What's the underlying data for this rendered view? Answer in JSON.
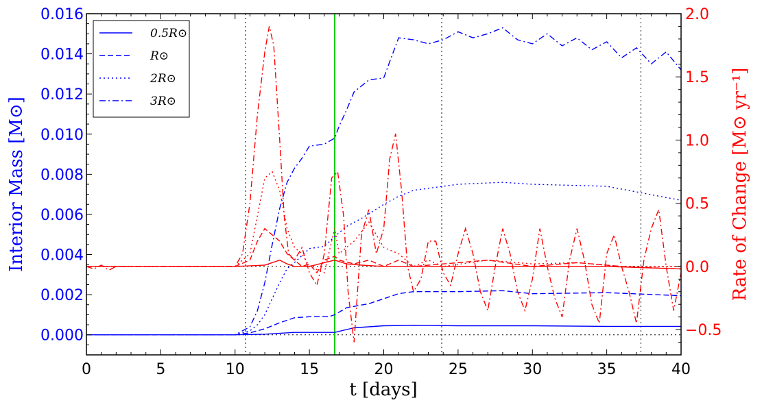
{
  "chart_data": {
    "type": "line",
    "xlabel": "t  [days]",
    "ylabel_left": "Interior Mass  [M⊙]",
    "ylabel_right": "Rate of Change  [M⊙ yr⁻¹]",
    "xlim": [
      0,
      40
    ],
    "ylim_left": [
      -0.001,
      0.016
    ],
    "ylim_right": [
      -0.7,
      2.0
    ],
    "x_ticks": [
      "0",
      "5",
      "10",
      "15",
      "20",
      "25",
      "30",
      "35",
      "40"
    ],
    "y_left_ticks": [
      "0.000",
      "0.002",
      "0.004",
      "0.006",
      "0.008",
      "0.010",
      "0.012",
      "0.014",
      "0.016"
    ],
    "y_right_ticks": [
      "−0.5",
      "0.0",
      "0.5",
      "1.0",
      "1.5",
      "2.0"
    ],
    "grid": false,
    "legend_placement": "top-left",
    "left_axis_color": "#0000ff",
    "right_axis_color": "#ff0000",
    "vertical_markers": [
      {
        "x": 10.7,
        "color": "#000000",
        "style": "dotted"
      },
      {
        "x": 16.7,
        "color": "#00cc00",
        "style": "solid"
      },
      {
        "x": 23.9,
        "color": "#000000",
        "style": "dotted"
      },
      {
        "x": 37.3,
        "color": "#000000",
        "style": "dotted"
      }
    ],
    "horizontal_markers": [
      {
        "axis": "left",
        "y": 0.0,
        "color": "#000000",
        "style": "dotted"
      },
      {
        "axis": "right",
        "y": 0.0,
        "color": "#000000",
        "style": "dotted"
      }
    ],
    "mass_series": [
      {
        "name": "0.5R⊙",
        "dash": "solid",
        "x": [
          0,
          10,
          12,
          14,
          16,
          16.7,
          18,
          20,
          22,
          25,
          30,
          35,
          40
        ],
        "y": [
          0,
          0,
          3e-05,
          0.00012,
          0.00012,
          0.00012,
          0.00035,
          0.00045,
          0.00047,
          0.00045,
          0.00045,
          0.00042,
          0.00042
        ]
      },
      {
        "name": "R⊙",
        "dash": "dashed",
        "x": [
          0,
          10,
          11,
          12,
          13,
          14,
          15,
          16.3,
          16.7,
          17.5,
          19,
          20,
          21,
          22,
          25,
          28,
          30,
          35,
          40
        ],
        "y": [
          0,
          0,
          0.0001,
          0.0003,
          0.0006,
          0.00085,
          0.0009,
          0.0009,
          0.001,
          0.00135,
          0.00155,
          0.0018,
          0.00205,
          0.00215,
          0.00215,
          0.0022,
          0.00205,
          0.0021,
          0.00195
        ]
      },
      {
        "name": "2R⊙",
        "dash": "dotted",
        "x": [
          0,
          10,
          11,
          11.5,
          12,
          12.5,
          13,
          13.5,
          14,
          15,
          16,
          16.7,
          17.5,
          18.5,
          20,
          21,
          22,
          23,
          25,
          28,
          30,
          35,
          40
        ],
        "y": [
          0,
          0,
          0.0002,
          0.0005,
          0.001,
          0.0018,
          0.0026,
          0.0033,
          0.0036,
          0.0043,
          0.0044,
          0.0049,
          0.0054,
          0.0058,
          0.0065,
          0.0069,
          0.0072,
          0.0073,
          0.0075,
          0.0076,
          0.0075,
          0.0074,
          0.0067
        ]
      },
      {
        "name": "3R⊙",
        "dash": "dashdot",
        "x": [
          0,
          10,
          11,
          11.5,
          12,
          12.5,
          13,
          13.5,
          14,
          14.5,
          15,
          16,
          16.7,
          17,
          17.5,
          18,
          19,
          20,
          20.5,
          21,
          22,
          23,
          24,
          25,
          26,
          27,
          28,
          29,
          30,
          31,
          32,
          33,
          34,
          35,
          36,
          37,
          38,
          39,
          40
        ],
        "y": [
          0,
          0,
          0.0004,
          0.0012,
          0.0026,
          0.0045,
          0.0063,
          0.0076,
          0.0083,
          0.0088,
          0.0094,
          0.0095,
          0.0098,
          0.0104,
          0.0112,
          0.0121,
          0.0127,
          0.0128,
          0.0138,
          0.0148,
          0.0147,
          0.0145,
          0.0147,
          0.0151,
          0.0148,
          0.015,
          0.0153,
          0.0147,
          0.0145,
          0.015,
          0.0144,
          0.0148,
          0.0142,
          0.0146,
          0.0138,
          0.0143,
          0.0135,
          0.0141,
          0.0132
        ]
      }
    ],
    "rate_series": [
      {
        "name": "0.5R⊙",
        "dash": "solid",
        "x": [
          0,
          10,
          12,
          13,
          13.5,
          14,
          15,
          16,
          16.7,
          17.5,
          18.5,
          20,
          25,
          30,
          35,
          40
        ],
        "y": [
          0,
          0,
          0.01,
          0.05,
          0.02,
          0,
          0,
          0.03,
          0.05,
          0.02,
          0.01,
          0,
          0,
          0,
          0,
          -0.02
        ]
      },
      {
        "name": "R⊙",
        "dash": "dashed",
        "x": [
          0,
          10,
          11,
          11.5,
          12,
          12.5,
          13,
          13.5,
          14,
          14.5,
          15,
          15.5,
          16,
          16.7,
          17,
          18,
          19,
          20,
          21,
          22,
          24,
          27,
          30,
          33,
          36,
          40
        ],
        "y": [
          0,
          0,
          0.05,
          0.2,
          0.3,
          0.25,
          0.2,
          0.1,
          0.05,
          0.0,
          0.02,
          -0.05,
          0.05,
          0.08,
          0.05,
          0.02,
          0.05,
          0.0,
          0.05,
          0.0,
          0.02,
          0.05,
          0.0,
          0.03,
          0.0,
          -0.02
        ]
      },
      {
        "name": "2R⊙",
        "dash": "dotted",
        "x": [
          0,
          10,
          11,
          11.5,
          12,
          12.5,
          13,
          13.5,
          14,
          14.5,
          15,
          16,
          16.7,
          17,
          18,
          19,
          20,
          21,
          22,
          23,
          24,
          27,
          30,
          33,
          36,
          40
        ],
        "y": [
          0,
          0,
          0.1,
          0.4,
          0.7,
          0.75,
          0.6,
          0.3,
          0.15,
          0.1,
          0.0,
          -0.05,
          0.3,
          0.1,
          0.2,
          0.35,
          0.15,
          0.1,
          0.0,
          0.05,
          0.0,
          0.05,
          0.02,
          0.03,
          0.0,
          0.0
        ]
      },
      {
        "name": "3R⊙",
        "dash": "dashdot",
        "x": [
          0,
          0.5,
          1,
          1.5,
          2,
          10,
          10.5,
          11,
          11.5,
          12,
          12.3,
          12.6,
          13,
          13.3,
          13.6,
          14,
          14.5,
          15,
          15.5,
          16,
          16.5,
          16.9,
          17.3,
          17.6,
          18,
          18.5,
          19,
          19.5,
          20,
          20.4,
          20.8,
          21.2,
          21.6,
          22,
          22.5,
          23,
          23.5,
          24,
          24.5,
          25,
          25.5,
          26,
          26.5,
          27,
          27.5,
          28,
          28.5,
          29,
          29.5,
          30,
          30.5,
          31,
          31.5,
          32,
          32.5,
          33,
          33.5,
          34,
          34.5,
          35,
          35.5,
          36,
          36.5,
          37,
          37.5,
          38,
          38.5,
          39,
          39.5,
          40
        ],
        "y": [
          0,
          -0.02,
          0.01,
          -0.03,
          0,
          0,
          0.1,
          0.5,
          1.2,
          1.7,
          1.9,
          1.75,
          1.0,
          0.4,
          0.1,
          0.05,
          0.15,
          -0.05,
          -0.15,
          0.1,
          0.7,
          0.75,
          0.4,
          -0.2,
          -0.6,
          0.25,
          0.45,
          0.1,
          0.3,
          0.85,
          1.05,
          0.6,
          0.0,
          -0.2,
          -0.1,
          0.2,
          0.2,
          -0.05,
          -0.15,
          0.1,
          0.3,
          0.1,
          -0.2,
          -0.35,
          0.0,
          0.3,
          0.1,
          -0.2,
          -0.35,
          -0.1,
          0.3,
          0.0,
          -0.25,
          -0.4,
          0.05,
          0.3,
          0.05,
          -0.3,
          -0.45,
          0.1,
          0.25,
          0.0,
          -0.2,
          -0.45,
          0.05,
          0.3,
          0.45,
          0.0,
          -0.35,
          -0.05
        ]
      }
    ]
  }
}
